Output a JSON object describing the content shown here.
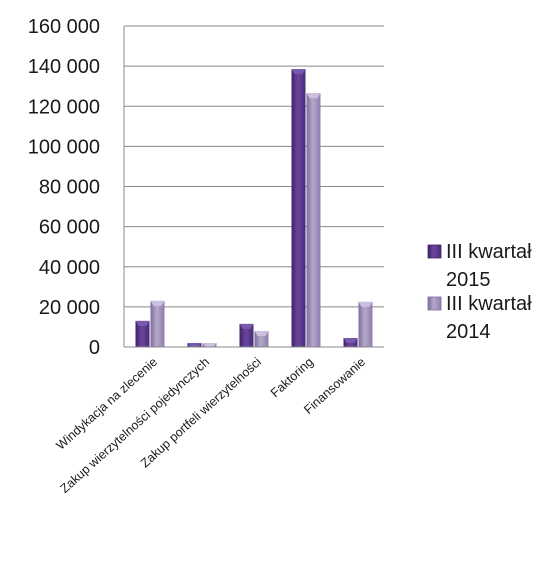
{
  "chart_data": {
    "type": "bar",
    "title": "",
    "xlabel": "",
    "ylabel": "",
    "ylim": [
      0,
      160000
    ],
    "yticks": [
      0,
      20000,
      40000,
      60000,
      80000,
      100000,
      120000,
      140000,
      160000
    ],
    "ytick_labels": [
      "0",
      "20 000",
      "40 000",
      "60 000",
      "80 000",
      "100 000",
      "120 000",
      "140 000",
      "160 000"
    ],
    "grid": true,
    "legend_position": "right",
    "categories": [
      "Windykacja na zlecenie",
      "Zakup wierzytelności pojedynczych",
      "Zakup portfeli wierzytelności",
      "Faktoring",
      "Finansowanie"
    ],
    "series": [
      {
        "name": "III kwartał 2015",
        "legend_lines": [
          "III kwartał",
          "2015"
        ],
        "color": "#5b3a8a",
        "values": [
          13000,
          2000,
          11500,
          138500,
          4500
        ]
      },
      {
        "name": "III kwartał 2014",
        "legend_lines": [
          "III kwartał",
          "2014"
        ],
        "color": "#9b8bb5",
        "values": [
          23000,
          2000,
          8000,
          126500,
          22500
        ]
      }
    ]
  }
}
